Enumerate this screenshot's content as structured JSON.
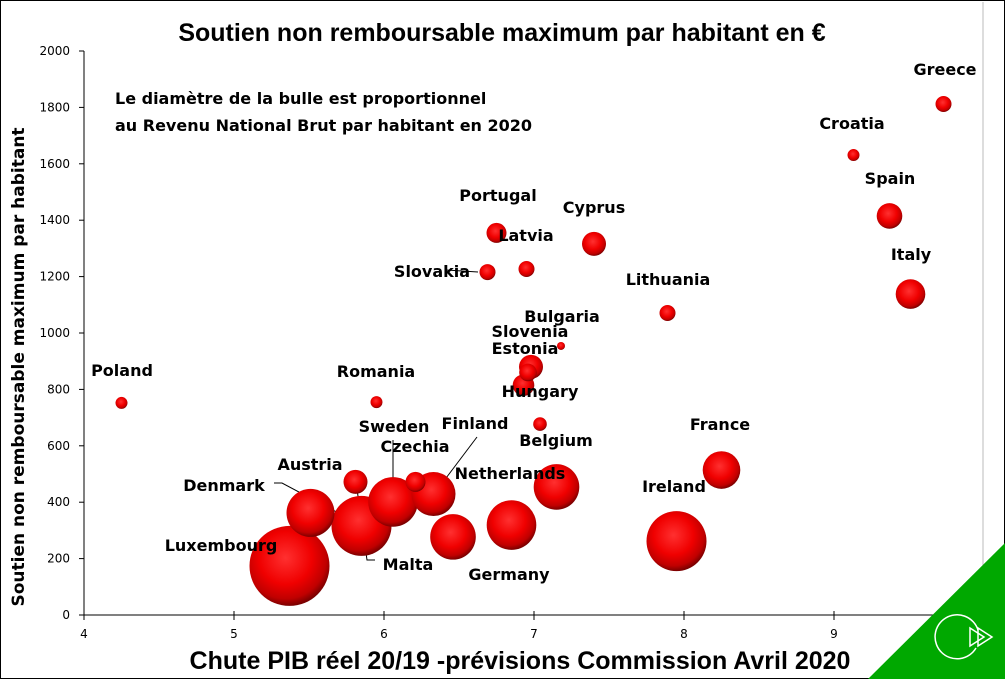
{
  "chart_data": {
    "type": "scatter",
    "subtype": "bubble",
    "title": "Soutien non remboursable maximum par habitant en €",
    "xlabel": "Chute PIB réel 20/19 -prévisions Commission Avril 2020",
    "ylabel": "Soutien non remboursable maximum  par habitant",
    "annotation": [
      "Le diamètre de la bulle est proportionnel",
      "au Revenu National Brut par habitant en 2020"
    ],
    "xlim": [
      4,
      9.95
    ],
    "ylim": [
      0,
      2000
    ],
    "xticks": [
      "4",
      "5",
      "6",
      "7",
      "8",
      "9"
    ],
    "yticks": [
      "0",
      "200",
      "400",
      "600",
      "800",
      "1000",
      "1200",
      "1400",
      "1600",
      "1800",
      "2000"
    ],
    "grid": false,
    "size_note": "bubble size relative (Luxembourg = 100)",
    "points": [
      {
        "name": "Poland",
        "x": 4.25,
        "y": 752,
        "size": 15
      },
      {
        "name": "Romania",
        "x": 5.95,
        "y": 755,
        "size": 15
      },
      {
        "name": "Slovakia",
        "x": 6.69,
        "y": 1216,
        "size": 20
      },
      {
        "name": "Portugal",
        "x": 6.75,
        "y": 1355,
        "size": 25
      },
      {
        "name": "Latvia",
        "x": 6.95,
        "y": 1227,
        "size": 20
      },
      {
        "name": "Cyprus",
        "x": 7.4,
        "y": 1316,
        "size": 30
      },
      {
        "name": "Lithuania",
        "x": 7.89,
        "y": 1071,
        "size": 20
      },
      {
        "name": "Bulgaria",
        "x": 7.18,
        "y": 954,
        "size": 10
      },
      {
        "name": "Slovenia",
        "x": 6.98,
        "y": 880,
        "size": 30
      },
      {
        "name": "Estonia",
        "x": 6.96,
        "y": 860,
        "size": 22
      },
      {
        "name": "Hungary",
        "x": 6.93,
        "y": 815,
        "size": 27
      },
      {
        "name": "Belgium",
        "x": 7.04,
        "y": 677,
        "size": 17
      },
      {
        "name": "Greece",
        "x": 9.73,
        "y": 1812,
        "size": 20
      },
      {
        "name": "Croatia",
        "x": 9.13,
        "y": 1631,
        "size": 15
      },
      {
        "name": "Spain",
        "x": 9.37,
        "y": 1415,
        "size": 32
      },
      {
        "name": "Italy",
        "x": 9.51,
        "y": 1138,
        "size": 37
      },
      {
        "name": "France",
        "x": 8.25,
        "y": 514,
        "size": 47
      },
      {
        "name": "Ireland",
        "x": 7.95,
        "y": 262,
        "size": 75
      },
      {
        "name": "Luxembourg",
        "x": 5.37,
        "y": 174,
        "size": 100
      },
      {
        "name": "Denmark",
        "x": 5.51,
        "y": 362,
        "size": 60
      },
      {
        "name": "Austria",
        "x": 5.81,
        "y": 472,
        "size": 30
      },
      {
        "name": "Malta",
        "x": 5.85,
        "y": 316,
        "size": 75
      },
      {
        "name": "Czechia",
        "x": 6.06,
        "y": 401,
        "size": 62
      },
      {
        "name": "Sweden",
        "x": 6.21,
        "y": 472,
        "size": 25
      },
      {
        "name": "Finland",
        "x": 6.33,
        "y": 429,
        "size": 55
      },
      {
        "name": "Germany",
        "x": 6.46,
        "y": 277,
        "size": 57
      },
      {
        "name": "Netherlands",
        "x": 6.85,
        "y": 319,
        "size": 62
      },
      {
        "name": "",
        "x": 7.15,
        "y": 454,
        "size": 57
      }
    ]
  },
  "colors": {
    "bubble": "#ff0000",
    "corner": "#00a800"
  },
  "corner_icon": "replay-arrow-icon"
}
